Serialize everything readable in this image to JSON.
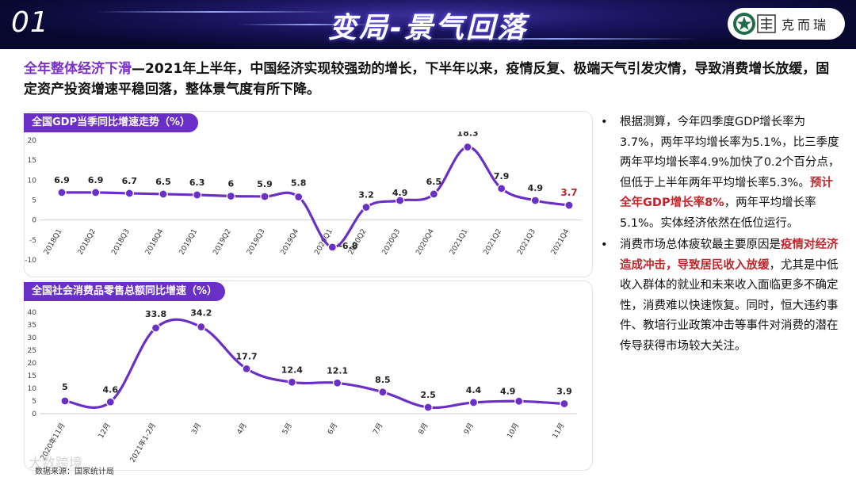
{
  "header": {
    "number": "01",
    "title": "变局-景气回落",
    "brand": "克而瑞"
  },
  "intro": {
    "highlight": "全年整体经济下滑",
    "text": "—2021年上半年，中国经济实现较强劲的增长，下半年以来，疫情反复、极端天气引发灾情，导致消费增长放缓，固定资产投资增速平稳回落，整体景气度有所下降。"
  },
  "colors": {
    "accent": "#6a2fc7",
    "line": "#6a2fc7",
    "marker": "#6a2fc7",
    "last_label": "#c0272d"
  },
  "chart_data": [
    {
      "type": "line",
      "title": "全国GDP当季同比增速走势（%）",
      "categories": [
        "2018Q1",
        "2018Q2",
        "2018Q3",
        "2018Q4",
        "2019Q1",
        "2019Q2",
        "2019Q3",
        "2019Q4",
        "2020Q1",
        "2020Q2",
        "2020Q3",
        "2020Q4",
        "2021Q1",
        "2021Q2",
        "2021Q3",
        "2021Q4"
      ],
      "values": [
        6.9,
        6.9,
        6.7,
        6.5,
        6.3,
        6,
        5.9,
        5.8,
        -6.8,
        3.2,
        4.9,
        6.5,
        18.3,
        7.9,
        4.9,
        3.7
      ],
      "labels": [
        "6.9",
        "6.9",
        "6.7",
        "6.5",
        "6.3",
        "6",
        "5.9",
        "5.8",
        "-6.8",
        "3.2",
        "4.9",
        "6.5",
        "18.3",
        "7.9",
        "4.9",
        "3.7"
      ],
      "yticks": [
        "20",
        "15",
        "10",
        "5",
        "0",
        "-5",
        "-10"
      ],
      "ylim": [
        -10,
        20
      ],
      "xlabel": "",
      "ylabel": ""
    },
    {
      "type": "line",
      "title": "全国社会消费品零售总额同比增速（%）",
      "categories": [
        "2020年11月",
        "12月",
        "2021年1-2月",
        "3月",
        "4月",
        "5月",
        "6月",
        "7月",
        "8月",
        "9月",
        "10月",
        "11月"
      ],
      "values": [
        5,
        4.6,
        33.8,
        34.2,
        17.7,
        12.4,
        12.1,
        8.5,
        2.5,
        4.4,
        4.9,
        3.9
      ],
      "labels": [
        "5",
        "4.6",
        "33.8",
        "34.2",
        "17.7",
        "12.4",
        "12.1",
        "8.5",
        "2.5",
        "4.4",
        "4.9",
        "3.9"
      ],
      "yticks": [
        "40",
        "35",
        "30",
        "25",
        "20",
        "15",
        "10",
        "5",
        "0"
      ],
      "ylim": [
        0,
        40
      ],
      "xlabel": "",
      "ylabel": ""
    }
  ],
  "bullets": [
    {
      "parts": [
        {
          "text": "根据测算，今年四季度GDP增长率为3.7%，两年平均增长率为5.1%，比三季度两年平均增长率4.9%加快了0.2个百分点，但低于上半年两年平均增长率5.3%。",
          "red": false
        },
        {
          "text": "预计全年GDP增长率8%",
          "red": true
        },
        {
          "text": "，两年平均增长率5.1%。实体经济依然在低位运行。",
          "red": false
        }
      ]
    },
    {
      "parts": [
        {
          "text": "消费市场总体疲软最主要原因是",
          "red": false
        },
        {
          "text": "疫情对经济造成冲击，导致居民收入放缓",
          "red": true
        },
        {
          "text": "，尤其是中低收入群体的就业和未来收入面临更多不确定性，消费难以快速恢复。同时，恒大违约事件、教培行业政策冲击等事件对消费的潜在传导获得市场较大关注。",
          "red": false
        }
      ]
    }
  ],
  "bullet_symbol": "•",
  "source": "数据来源：国家统计局",
  "watermark": "大数跨境"
}
